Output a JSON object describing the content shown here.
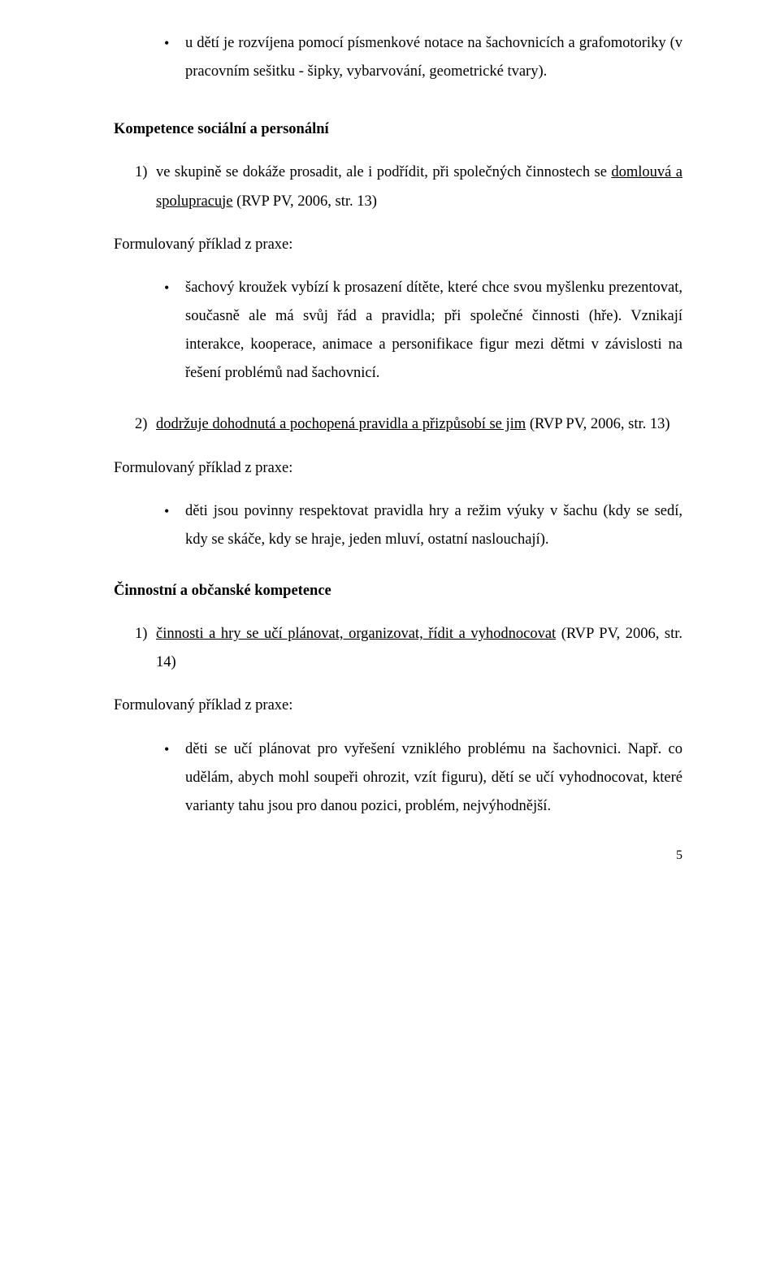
{
  "intro_bullet": "u dětí je rozvíjena pomocí písmenkové notace na šachovnicích a grafomotoriky (v pracovním sešitku - šipky, vybarvování, geometrické tvary).",
  "section1": {
    "heading": "Kompetence sociální a personální",
    "item1_prefix": "1)",
    "item1_plain_before": "ve skupině se dokáže prosadit, ale i podřídit, při společných činnostech se ",
    "item1_underlined": "domlouvá a spolupracuje",
    "item1_plain_after": " (RVP PV, 2006, str. 13)",
    "example_label": "Formulovaný příklad z praxe:",
    "bullet1": "šachový kroužek vybízí k prosazení dítěte, které chce svou myšlenku prezentovat, současně ale má svůj řád a pravidla; při společné činnosti (hře). Vznikají interakce, kooperace, animace a personifikace figur mezi dětmi v závislosti na řešení problémů nad šachovnicí.",
    "item2_prefix": "2)",
    "item2_underlined": "dodržuje dohodnutá a pochopená pravidla a přizpůsobí se jim",
    "item2_plain_after": " (RVP PV, 2006, str. 13)",
    "bullet2": "děti jsou povinny respektovat pravidla hry a režim výuky v šachu (kdy se sedí, kdy se skáče, kdy se hraje, jeden mluví, ostatní naslouchají)."
  },
  "section2": {
    "heading": "Činnostní a občanské kompetence",
    "item1_prefix": "1)",
    "item1_underlined": "činnosti a hry se učí plánovat, organizovat, řídit a vyhodnocovat",
    "item1_plain_after": " (RVP PV, 2006, str. 14)",
    "example_label": "Formulovaný příklad z praxe:",
    "bullet1": "děti se učí plánovat pro vyřešení vzniklého problému na šachovnici. Např. co udělám, abych mohl soupeři ohrozit, vzít figuru), dětí se učí vyhodnocovat, které varianty tahu jsou pro danou pozici, problém, nejvýhodnější."
  },
  "page_number": "5"
}
